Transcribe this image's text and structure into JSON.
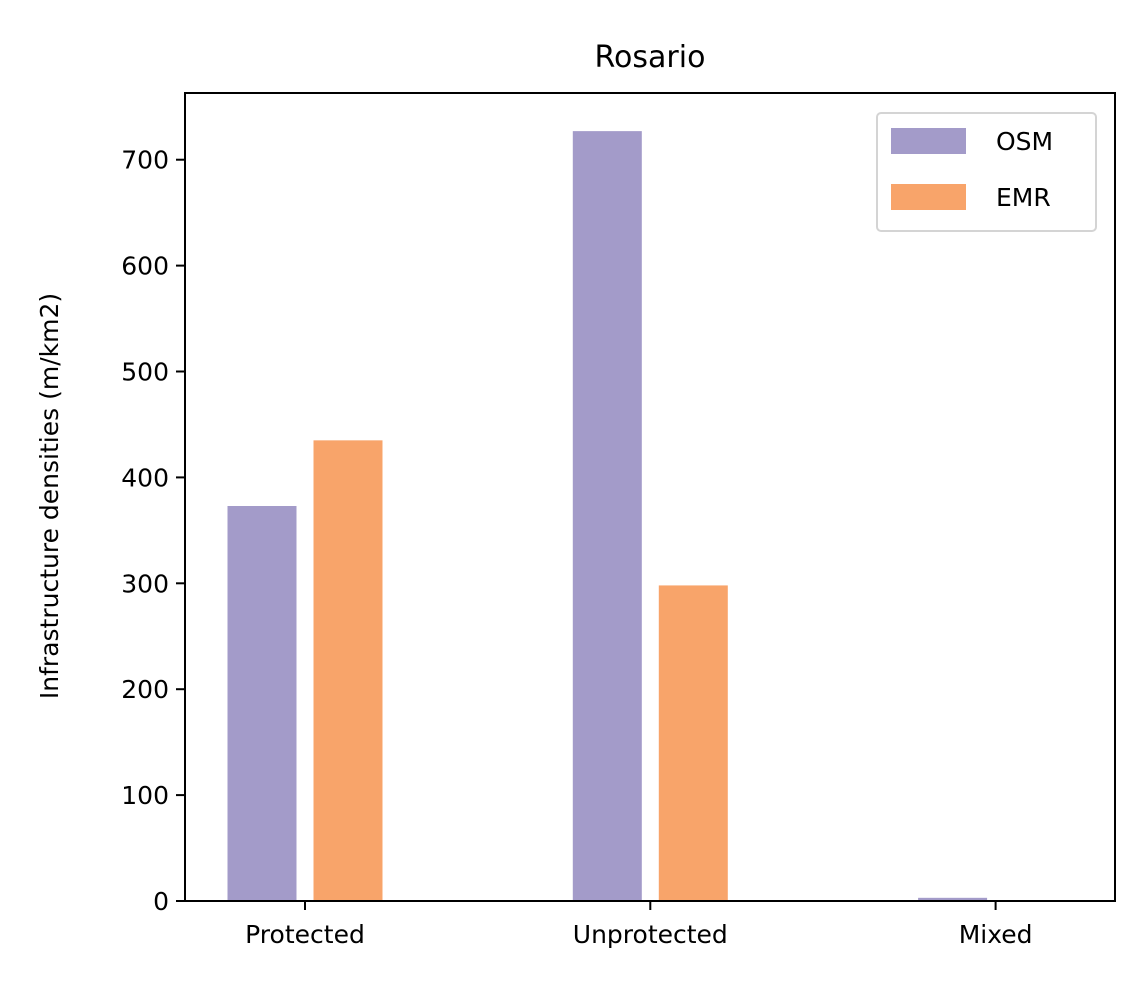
{
  "chart_data": {
    "type": "bar",
    "title": "Rosario",
    "xlabel": "",
    "ylabel": "Infrastructure densities (m/km2)",
    "categories": [
      "Protected",
      "Unprotected",
      "Mixed"
    ],
    "series": [
      {
        "name": "OSM",
        "values": [
          373,
          727,
          3
        ],
        "color": "#a39bc9"
      },
      {
        "name": "EMR",
        "values": [
          435,
          298,
          0
        ],
        "color": "#f8a46a"
      }
    ],
    "ylim": [
      0,
      763
    ],
    "yticks": [
      0,
      100,
      200,
      300,
      400,
      500,
      600,
      700
    ],
    "grid": false,
    "legend": "top-right"
  }
}
